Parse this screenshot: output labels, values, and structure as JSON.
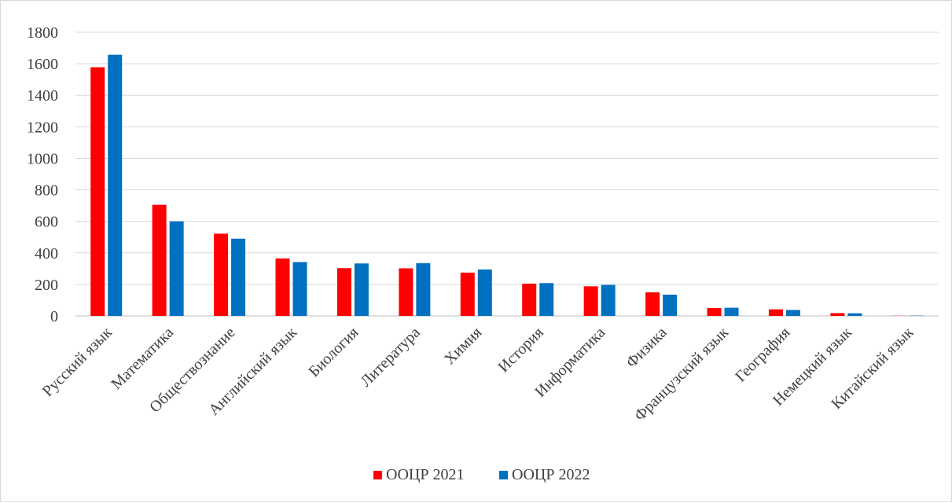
{
  "chart_data": {
    "type": "bar",
    "categories": [
      "Русский язык",
      "Математика",
      "Обществознание",
      "Английский язык",
      "Биология",
      "Литература",
      "Химия",
      "История",
      "Информатика",
      "Физика",
      "Французский язык",
      "География",
      "Немецкий язык",
      "Китайский язык"
    ],
    "series": [
      {
        "name": "ООЦР 2021",
        "color": "#ff0000",
        "values": [
          1578,
          705,
          522,
          365,
          303,
          302,
          275,
          205,
          188,
          150,
          50,
          42,
          18,
          1
        ]
      },
      {
        "name": "ООЦР 2022",
        "color": "#0070c0",
        "values": [
          1657,
          600,
          490,
          342,
          333,
          335,
          295,
          208,
          197,
          135,
          52,
          38,
          17,
          2
        ]
      }
    ],
    "yticks": [
      "0",
      "200",
      "400",
      "600",
      "800",
      "1000",
      "1200",
      "1400",
      "1600",
      "1800"
    ],
    "ylim": [
      0,
      1800
    ],
    "grid": true,
    "legend_position": "bottom"
  }
}
